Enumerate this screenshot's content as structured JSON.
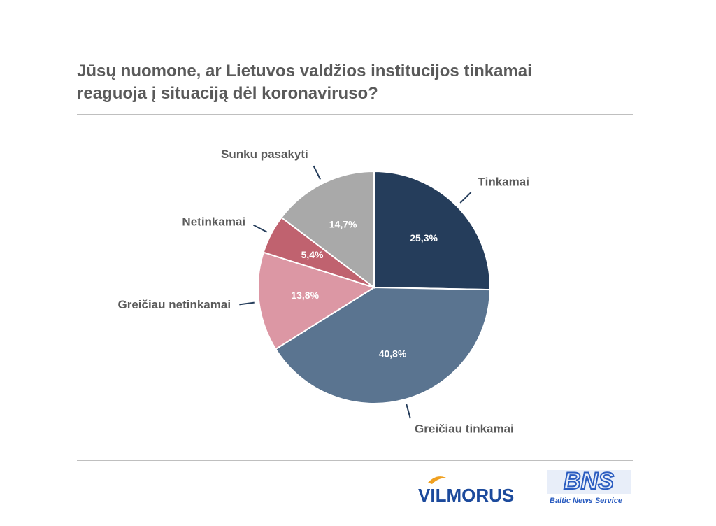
{
  "chart_data": {
    "type": "pie",
    "title": "Jūsų nuomone, ar Lietuvos valdžios institucijos tinkamai reaguoja į situaciją dėl koronaviruso?",
    "categories": [
      "Tinkamai",
      "Greičiau tinkamai",
      "Greičiau netinkamai",
      "Netinkamai",
      "Sunku pasakyti"
    ],
    "values": [
      25.3,
      40.8,
      13.8,
      5.4,
      14.7
    ],
    "value_labels": [
      "25,3%",
      "40,8%",
      "13,8%",
      "5,4%",
      "14,7%"
    ],
    "colors": [
      "#253d5b",
      "#5a7490",
      "#dc97a4",
      "#c0626f",
      "#a9a9a9"
    ]
  },
  "footer": {
    "logo_left": "VILMORUS",
    "logo_right": "BNS",
    "logo_right_caption": "Baltic News Service"
  }
}
